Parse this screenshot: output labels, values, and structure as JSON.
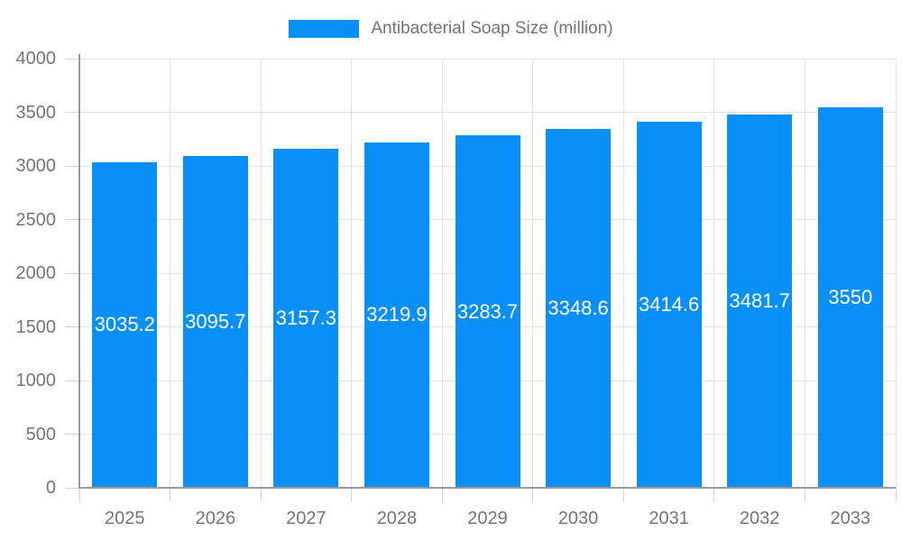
{
  "chart_data": {
    "type": "bar",
    "title": "",
    "legend": "Antibacterial Soap Size (million)",
    "legend_position": "top-center",
    "categories": [
      "2025",
      "2026",
      "2027",
      "2028",
      "2029",
      "2030",
      "2031",
      "2032",
      "2033"
    ],
    "series": [
      {
        "name": "Antibacterial Soap Size (million)",
        "values": [
          3035.2,
          3095.7,
          3157.3,
          3219.9,
          3283.7,
          3348.6,
          3414.6,
          3481.7,
          3550
        ]
      }
    ],
    "xlabel": "",
    "ylabel": "",
    "ylim": [
      0,
      4000
    ],
    "ytick_step": 500,
    "ytick_labels": [
      "0",
      "500",
      "1000",
      "1500",
      "2000",
      "2500",
      "3000",
      "3500",
      "4000"
    ],
    "grid": "on",
    "bar_value_labels": "inside-white",
    "colors": {
      "bar": "#0890F8",
      "grid": "#e2e2e2",
      "tick": "#d2d2d2",
      "axis": "#9a9a9a",
      "text": "#757575",
      "bar_label": "#ffffff",
      "background": "#ffffff"
    }
  }
}
